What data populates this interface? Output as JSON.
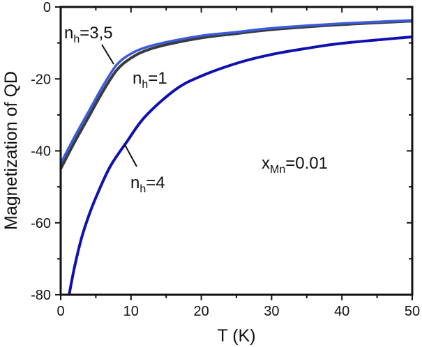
{
  "chart_data": {
    "type": "line",
    "title": "",
    "xlabel": "T (K)",
    "ylabel": "Magnetization of QD",
    "xlim": [
      0,
      50
    ],
    "ylim": [
      -80,
      0
    ],
    "xticks": [
      0,
      10,
      20,
      30,
      40,
      50
    ],
    "yticks": [
      0,
      -20,
      -40,
      -60,
      -80
    ],
    "grid": false,
    "series": [
      {
        "name": "n_h=1",
        "color": "#3a3a3a",
        "x": [
          0,
          2,
          4,
          6,
          8,
          10,
          12,
          15,
          20,
          25,
          30,
          40,
          50
        ],
        "y": [
          -45,
          -37.5,
          -30.5,
          -23.5,
          -17.5,
          -14.2,
          -12.2,
          -10.5,
          -8.6,
          -7.4,
          -6.3,
          -4.9,
          -3.9
        ]
      },
      {
        "name": "n_h=3,5",
        "color": "#3b5bdb",
        "x": [
          0,
          2,
          4,
          6,
          8,
          10,
          12,
          15,
          20,
          25,
          30,
          40,
          50
        ],
        "y": [
          -43.5,
          -36,
          -29,
          -22,
          -16,
          -13,
          -11.3,
          -9.8,
          -8,
          -7,
          -5.9,
          -4.6,
          -3.7
        ]
      },
      {
        "name": "n_h=4",
        "color": "#1010b0",
        "x": [
          1.2,
          2,
          3,
          4,
          5,
          7,
          9.4,
          12,
          16.3,
          20,
          25.3,
          30,
          35,
          40,
          50
        ],
        "y": [
          -80,
          -72,
          -64,
          -58,
          -53,
          -44.5,
          -37.5,
          -30.5,
          -23,
          -19.2,
          -15.5,
          -13.2,
          -11.5,
          -10.1,
          -8.3
        ]
      }
    ],
    "annotations": [
      {
        "base": "n",
        "sub": "h",
        "rest": "=3,5"
      },
      {
        "base": "n",
        "sub": "h",
        "rest": "=1"
      },
      {
        "base": "n",
        "sub": "h",
        "rest": "=4"
      },
      {
        "base": "x",
        "sub": "Mn",
        "rest": "=0.01"
      }
    ]
  }
}
